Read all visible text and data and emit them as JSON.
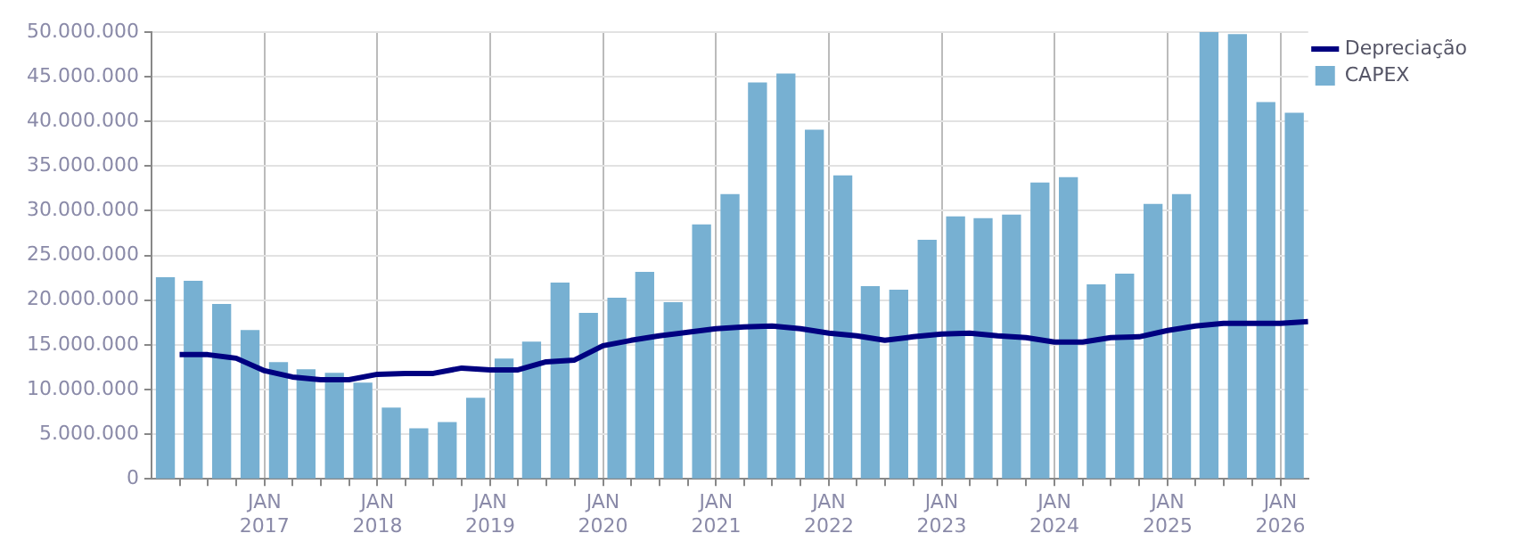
{
  "chart_data": {
    "type": "bar",
    "legend": "top right",
    "grid": true,
    "marker": "none",
    "line_style": "solid",
    "x": [
      "2016-02-15",
      "2016-05-15",
      "2016-08-15",
      "2016-11-15",
      "2017-02-15",
      "2017-05-15",
      "2017-08-15",
      "2017-11-15",
      "2018-02-15",
      "2018-05-15",
      "2018-08-15",
      "2018-11-15",
      "2019-02-15",
      "2019-05-15",
      "2019-08-15",
      "2019-11-15",
      "2020-02-15",
      "2020-05-15",
      "2020-08-15",
      "2020-11-15",
      "2021-02-15",
      "2021-05-15",
      "2021-08-15",
      "2021-11-15",
      "2022-02-15",
      "2022-05-15",
      "2022-08-15",
      "2022-11-15",
      "2023-02-15",
      "2023-05-15",
      "2023-08-15",
      "2023-11-15",
      "2024-02-15",
      "2024-05-15",
      "2024-08-15",
      "2024-11-15",
      "2025-02-15",
      "2025-05-15",
      "2025-08-15",
      "2025-11-15",
      "2026-02-15"
    ],
    "xlim": [
      "2016-01-01",
      "2026-04-01"
    ],
    "xticks": [
      {
        "value": "2016-04-01",
        "label": null
      },
      {
        "value": "2016-07-01",
        "label": null
      },
      {
        "value": "2016-10-01",
        "label": null
      },
      {
        "value": "2017-01-01",
        "label": "JAN 2017"
      },
      {
        "value": "2017-04-01",
        "label": null
      },
      {
        "value": "2017-07-01",
        "label": null
      },
      {
        "value": "2017-10-01",
        "label": null
      },
      {
        "value": "2018-01-01",
        "label": "JAN 2018"
      },
      {
        "value": "2018-04-01",
        "label": null
      },
      {
        "value": "2018-07-01",
        "label": null
      },
      {
        "value": "2018-10-01",
        "label": null
      },
      {
        "value": "2019-01-01",
        "label": "JAN 2019"
      },
      {
        "value": "2019-04-01",
        "label": null
      },
      {
        "value": "2019-07-01",
        "label": null
      },
      {
        "value": "2019-10-01",
        "label": null
      },
      {
        "value": "2020-01-01",
        "label": "JAN 2020"
      },
      {
        "value": "2020-04-01",
        "label": null
      },
      {
        "value": "2020-07-01",
        "label": null
      },
      {
        "value": "2020-10-01",
        "label": null
      },
      {
        "value": "2021-01-01",
        "label": "JAN 2021"
      },
      {
        "value": "2021-04-01",
        "label": null
      },
      {
        "value": "2021-07-01",
        "label": null
      },
      {
        "value": "2021-10-01",
        "label": null
      },
      {
        "value": "2022-01-01",
        "label": "JAN 2022"
      },
      {
        "value": "2022-04-01",
        "label": null
      },
      {
        "value": "2022-07-01",
        "label": null
      },
      {
        "value": "2022-10-01",
        "label": null
      },
      {
        "value": "2023-01-01",
        "label": "JAN 2023"
      },
      {
        "value": "2023-04-01",
        "label": null
      },
      {
        "value": "2023-07-01",
        "label": null
      },
      {
        "value": "2023-10-01",
        "label": null
      },
      {
        "value": "2024-01-01",
        "label": "JAN 2024"
      },
      {
        "value": "2024-04-01",
        "label": null
      },
      {
        "value": "2024-07-01",
        "label": null
      },
      {
        "value": "2024-10-01",
        "label": null
      },
      {
        "value": "2025-01-01",
        "label": "JAN 2025"
      },
      {
        "value": "2025-04-01",
        "label": null
      },
      {
        "value": "2025-07-01",
        "label": null
      },
      {
        "value": "2025-10-01",
        "label": null
      },
      {
        "value": "2026-01-01",
        "label": "JAN 2026"
      }
    ],
    "ylim": [
      0,
      50000000
    ],
    "yticks": [
      0,
      {
        "value": 5000000,
        "label": "5.000.000"
      },
      {
        "value": 10000000,
        "label": "10.000.000"
      },
      {
        "value": 15000000,
        "label": "15.000.000"
      },
      {
        "value": 20000000,
        "label": "20.000.000"
      },
      {
        "value": 25000000,
        "label": "25.000.000"
      },
      {
        "value": 30000000,
        "label": "30.000.000"
      },
      {
        "value": 35000000,
        "label": "35.000.000"
      },
      {
        "value": 40000000,
        "label": "40.000.000"
      },
      {
        "value": 45000000,
        "label": "45.000.000"
      },
      {
        "value": 50000000,
        "label": "50.000.000"
      }
    ],
    "series": [
      {
        "name": "CAPEX",
        "color": "#77b0d2",
        "values": [
          22500000,
          22100000,
          19500000,
          16600000,
          13000000,
          12200000,
          11800000,
          10700000,
          7900000,
          5600000,
          6300000,
          9000000,
          13400000,
          15300000,
          21900000,
          18500000,
          20200000,
          23100000,
          19700000,
          28400000,
          31800000,
          44300000,
          45300000,
          39000000,
          33900000,
          21500000,
          21100000,
          26700000,
          29300000,
          29100000,
          29500000,
          33100000,
          33700000,
          21700000,
          22900000,
          30700000,
          31800000,
          50000000,
          49700000,
          42100000,
          40900000
        ]
      },
      {
        "name": "Depreciação",
        "type": "line",
        "color": "#000080",
        "x": [
          "2016-04",
          "2016-07",
          "2016-10",
          "2017-01",
          "2017-04",
          "2017-07",
          "2017-10",
          "2018-01",
          "2018-04",
          "2018-07",
          "2018-10",
          "2019-01",
          "2019-04",
          "2019-07",
          "2019-10",
          "2020-01",
          "2020-04",
          "2020-07",
          "2020-10",
          "2021-01",
          "2021-04",
          "2021-07",
          "2021-10",
          "2022-01",
          "2022-04",
          "2022-07",
          "2022-10",
          "2023-01",
          "2023-04",
          "2023-07",
          "2023-10",
          "2024-01",
          "2024-04",
          "2024-07",
          "2024-10",
          "2025-01",
          "2025-04",
          "2025-07",
          "2025-10",
          "2026-01",
          "2026-04"
        ],
        "values": [
          13900000,
          13900000,
          13500000,
          12100000,
          11400000,
          11100000,
          11100000,
          11700000,
          11800000,
          11800000,
          12400000,
          12200000,
          12200000,
          13100000,
          13300000,
          14900000,
          15500000,
          16000000,
          16400000,
          16800000,
          17000000,
          17100000,
          16800000,
          16300000,
          16000000,
          15500000,
          15900000,
          16200000,
          16300000,
          16000000,
          15800000,
          15300000,
          15300000,
          15800000,
          15900000,
          16600000,
          17100000,
          17400000,
          17400000,
          17400000,
          17600000
        ]
      }
    ]
  }
}
